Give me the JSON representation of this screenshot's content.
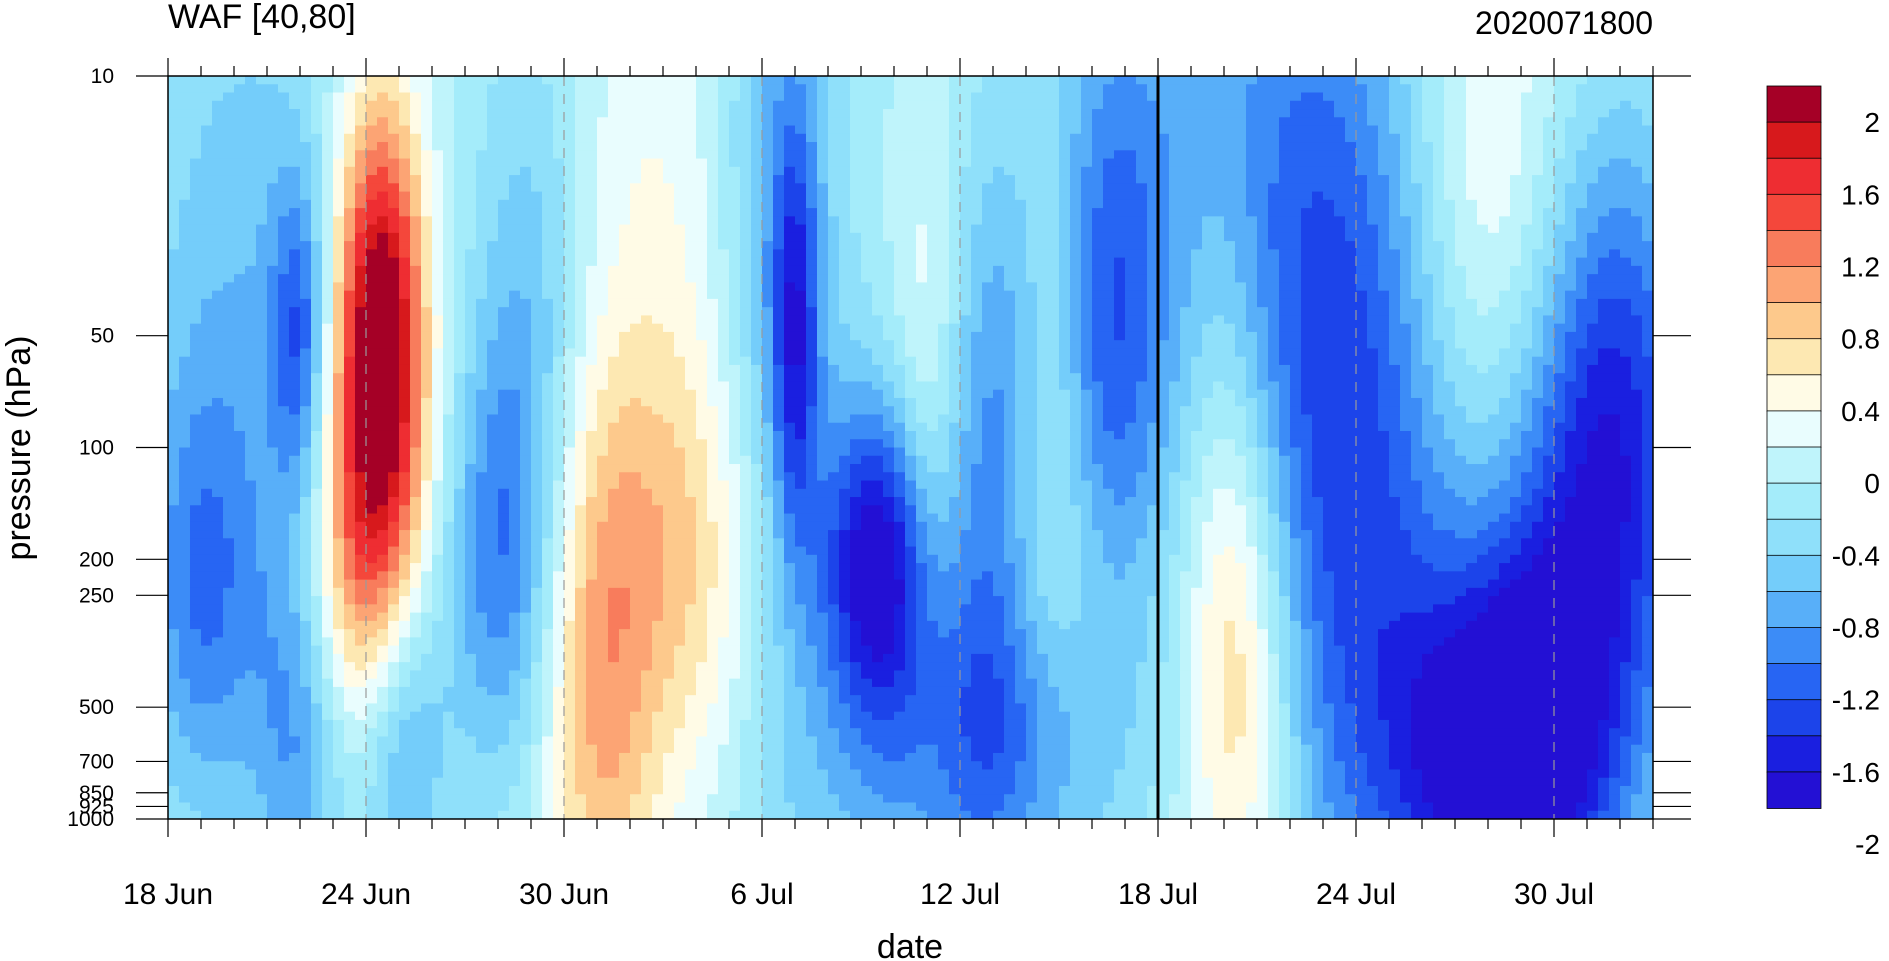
{
  "chart_data": {
    "type": "heatmap",
    "title_left": "WAF [40,80]",
    "title_right": "2020071800",
    "xlabel": "date",
    "ylabel": "pressure (hPa)",
    "x_ticks": [
      {
        "day": 0,
        "label": "18 Jun"
      },
      {
        "day": 6,
        "label": "24 Jun"
      },
      {
        "day": 12,
        "label": "30 Jun"
      },
      {
        "day": 18,
        "label": "6 Jul"
      },
      {
        "day": 24,
        "label": "12 Jul"
      },
      {
        "day": 30,
        "label": "18 Jul"
      },
      {
        "day": 36,
        "label": "24 Jul"
      },
      {
        "day": 42,
        "label": "30 Jul"
      }
    ],
    "x_range_days": [
      0,
      45
    ],
    "y_ticks": [
      "10",
      "50",
      "100",
      "200",
      "250",
      "500",
      "700",
      "850",
      "925",
      "1000"
    ],
    "y_scale": "log",
    "y_range": [
      1000,
      10
    ],
    "marker_date": "18 Jul",
    "colorbar": {
      "labels": [
        "2",
        "1.6",
        "1.2",
        "0.8",
        "0.4",
        "0",
        "-0.4",
        "-0.8",
        "-1.2",
        "-1.6",
        "-2"
      ],
      "colors": [
        "#a50026",
        "#d7191c",
        "#ee2d32",
        "#f4473b",
        "#f87c5c",
        "#fca474",
        "#fdc98c",
        "#fde8b2",
        "#fffbe6",
        "#e9fdfe",
        "#bff4fb",
        "#a4ecfa",
        "#8fe0fa",
        "#74cdfa",
        "#58aff9",
        "#3c8cf7",
        "#2765f3",
        "#1c44ea",
        "#1a1fe0",
        "#2310d4"
      ]
    },
    "blobs": [
      {
        "d": 6.5,
        "p": 50,
        "v": 2.0,
        "sd": 0.9,
        "sp": 0.45
      },
      {
        "d": 6.0,
        "p": 100,
        "v": 1.2,
        "sd": 1.3,
        "sp": 0.6
      },
      {
        "d": 5.5,
        "p": 250,
        "v": 0.5,
        "sd": 1.0,
        "sp": 0.3
      },
      {
        "d": 2.5,
        "p": 50,
        "v": -0.6,
        "sd": 2.5,
        "sp": 0.8
      },
      {
        "d": 4.0,
        "p": 50,
        "v": -1.1,
        "sd": 0.6,
        "sp": 0.3
      },
      {
        "d": 1.0,
        "p": 250,
        "v": -0.8,
        "sd": 1.2,
        "sp": 0.4
      },
      {
        "d": 4.0,
        "p": 600,
        "v": -0.8,
        "sd": 1.0,
        "sp": 0.4
      },
      {
        "d": 7.0,
        "p": 600,
        "v": -0.9,
        "sd": 1.0,
        "sp": 0.3
      },
      {
        "d": 11.0,
        "p": 50,
        "v": -0.6,
        "sd": 1.2,
        "sp": 0.6
      },
      {
        "d": 10.0,
        "p": 200,
        "v": -0.9,
        "sd": 1.1,
        "sp": 0.4
      },
      {
        "d": 13.0,
        "p": 500,
        "v": 0.9,
        "sd": 1.2,
        "sp": 0.6
      },
      {
        "d": 15.0,
        "p": 50,
        "v": 0.5,
        "sd": 2.0,
        "sp": 1.2
      },
      {
        "d": 16.0,
        "p": 200,
        "v": 0.6,
        "sd": 2.5,
        "sp": 0.4
      },
      {
        "d": 18.5,
        "p": 30,
        "v": -0.8,
        "sd": 1.3,
        "sp": 1.0
      },
      {
        "d": 19.0,
        "p": 50,
        "v": -1.2,
        "sd": 0.5,
        "sp": 0.4
      },
      {
        "d": 21.5,
        "p": 200,
        "v": -1.7,
        "sd": 1.2,
        "sp": 0.3
      },
      {
        "d": 22.5,
        "p": 600,
        "v": -0.5,
        "sd": 3.0,
        "sp": 0.6
      },
      {
        "d": 23.0,
        "p": 80,
        "v": 0.5,
        "sd": 0.8,
        "sp": 0.6
      },
      {
        "d": 25.0,
        "p": 100,
        "v": -0.8,
        "sd": 1.0,
        "sp": 0.6
      },
      {
        "d": 27.0,
        "p": 50,
        "v": 0.3,
        "sd": 0.7,
        "sp": 0.3
      },
      {
        "d": 28.5,
        "p": 50,
        "v": -1.0,
        "sd": 1.2,
        "sp": 0.6
      },
      {
        "d": 27.0,
        "p": 220,
        "v": 0.4,
        "sd": 1.5,
        "sp": 0.3
      },
      {
        "d": 25.0,
        "p": 600,
        "v": -0.7,
        "sd": 2.5,
        "sp": 0.3
      },
      {
        "d": 31.5,
        "p": 20,
        "v": -0.7,
        "sd": 2.5,
        "sp": 0.8
      },
      {
        "d": 32.5,
        "p": 400,
        "v": 1.0,
        "sd": 1.2,
        "sp": 0.5
      },
      {
        "d": 32.0,
        "p": 80,
        "v": 0.4,
        "sd": 1.0,
        "sp": 0.6
      },
      {
        "d": 36.0,
        "p": 200,
        "v": -0.9,
        "sd": 2.0,
        "sp": 0.9
      },
      {
        "d": 40.5,
        "p": 700,
        "v": -2.2,
        "sd": 2.2,
        "sp": 0.35
      },
      {
        "d": 42.0,
        "p": 200,
        "v": -1.3,
        "sd": 2.8,
        "sp": 0.5
      },
      {
        "d": 44.0,
        "p": 60,
        "v": -1.0,
        "sd": 1.5,
        "sp": 0.5
      },
      {
        "d": 40.0,
        "p": 40,
        "v": 0.6,
        "sd": 1.5,
        "sp": 1.0
      },
      {
        "d": 35.0,
        "p": 30,
        "v": -0.6,
        "sd": 2.0,
        "sp": 0.8
      }
    ]
  }
}
